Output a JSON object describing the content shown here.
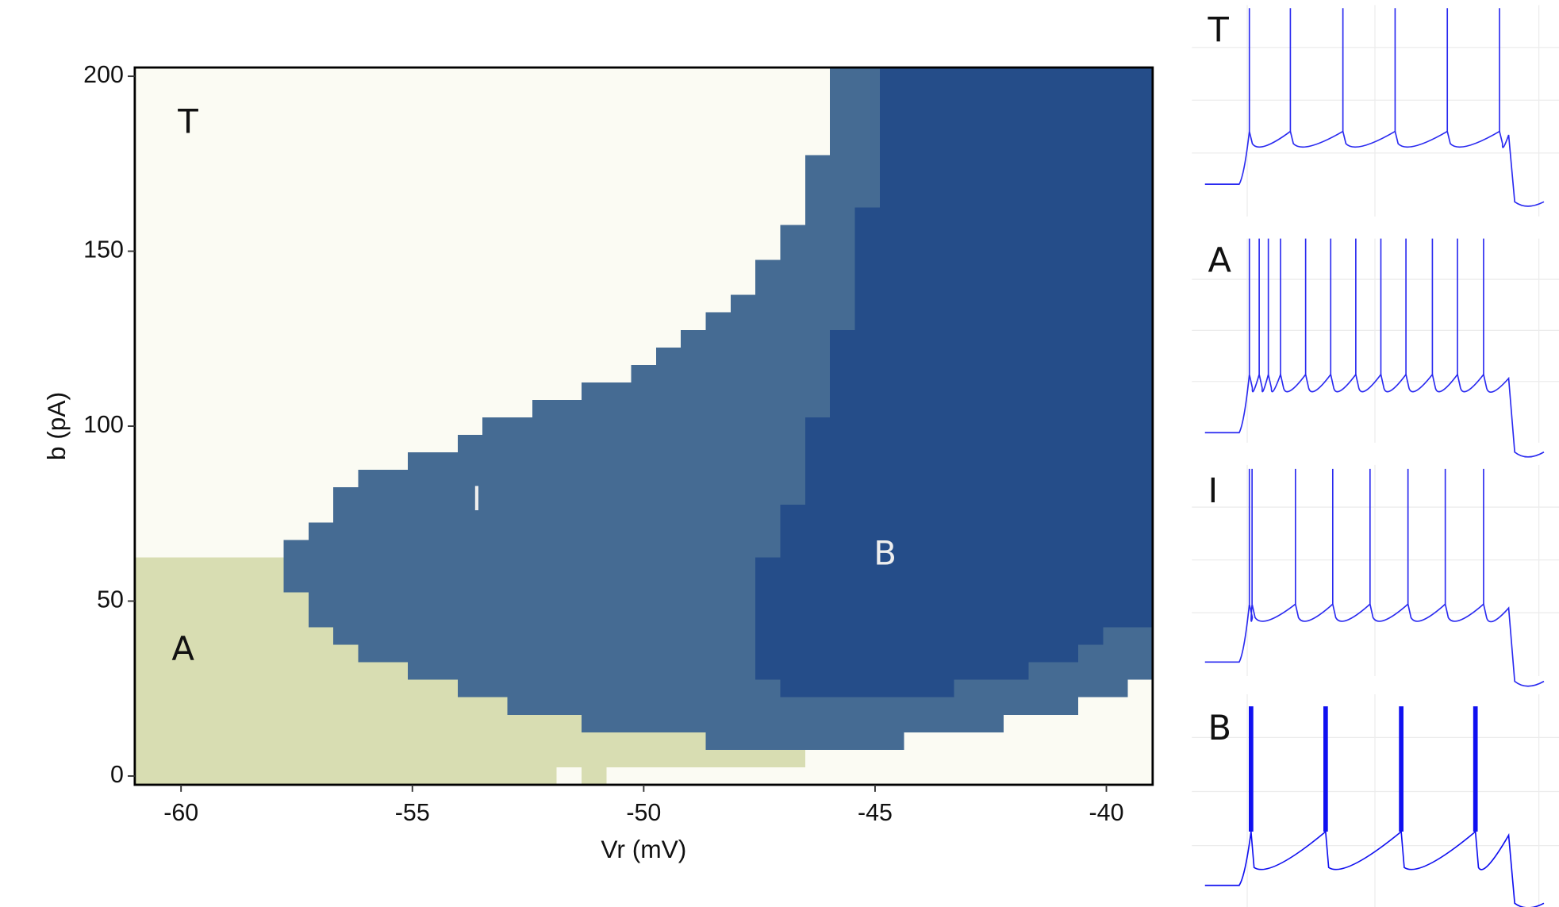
{
  "chart_data": [
    {
      "type": "region_map",
      "xlabel": "Vr (mV)",
      "ylabel": "b (pA)",
      "xlim": [
        -61,
        -39
      ],
      "ylim": [
        -2.5,
        202.5
      ],
      "xticks": [
        -60,
        -55,
        -50,
        -45,
        -40
      ],
      "yticks": [
        0,
        50,
        100,
        150,
        200
      ],
      "regions": [
        {
          "name": "T",
          "color": "#fbfbf3",
          "polygon": [
            [
              -61,
              -2.5
            ],
            [
              -61,
              202.5
            ],
            [
              -39,
              202.5
            ],
            [
              -39,
              -2.5
            ]
          ]
        },
        {
          "name": "A",
          "color": "#d8ddb2",
          "polygon": [
            [
              -61,
              -2.5
            ],
            [
              -61,
              62.5
            ],
            [
              -48.66,
              62.5
            ],
            [
              -48.66,
              7.5
            ],
            [
              -46.51,
              7.5
            ],
            [
              -46.51,
              2.5
            ],
            [
              -50.8,
              2.5
            ],
            [
              -50.8,
              -2.5
            ],
            [
              -51.34,
              -2.5
            ],
            [
              -51.34,
              2.5
            ],
            [
              -51.88,
              2.5
            ],
            [
              -51.88,
              -2.5
            ]
          ]
        },
        {
          "name": "I",
          "color": "#456b93",
          "polygon": [
            [
              -57.78,
              52.5
            ],
            [
              -57.78,
              67.5
            ],
            [
              -57.24,
              67.5
            ],
            [
              -57.24,
              72.5
            ],
            [
              -56.71,
              72.5
            ],
            [
              -56.71,
              82.5
            ],
            [
              -56.17,
              82.5
            ],
            [
              -56.17,
              87.5
            ],
            [
              -55.1,
              87.5
            ],
            [
              -55.1,
              92.5
            ],
            [
              -54.02,
              92.5
            ],
            [
              -54.02,
              97.5
            ],
            [
              -53.49,
              97.5
            ],
            [
              -53.49,
              102.5
            ],
            [
              -52.41,
              102.5
            ],
            [
              -52.41,
              107.5
            ],
            [
              -51.34,
              107.5
            ],
            [
              -51.34,
              112.5
            ],
            [
              -50.27,
              112.5
            ],
            [
              -50.27,
              117.5
            ],
            [
              -49.73,
              117.5
            ],
            [
              -49.73,
              122.5
            ],
            [
              -49.2,
              122.5
            ],
            [
              -49.2,
              127.5
            ],
            [
              -48.66,
              127.5
            ],
            [
              -48.66,
              132.5
            ],
            [
              -48.12,
              132.5
            ],
            [
              -48.12,
              137.5
            ],
            [
              -47.59,
              137.5
            ],
            [
              -47.59,
              147.5
            ],
            [
              -47.05,
              147.5
            ],
            [
              -47.05,
              157.5
            ],
            [
              -46.51,
              157.5
            ],
            [
              -46.51,
              177.5
            ],
            [
              -45.98,
              177.5
            ],
            [
              -45.98,
              202.5
            ],
            [
              -39,
              202.5
            ],
            [
              -39,
              27.5
            ],
            [
              -39.54,
              27.5
            ],
            [
              -39.54,
              22.5
            ],
            [
              -40.61,
              22.5
            ],
            [
              -40.61,
              17.5
            ],
            [
              -42.22,
              17.5
            ],
            [
              -42.22,
              12.5
            ],
            [
              -44.37,
              12.5
            ],
            [
              -44.37,
              7.5
            ],
            [
              -48.66,
              7.5
            ],
            [
              -48.66,
              12.5
            ],
            [
              -51.34,
              12.5
            ],
            [
              -51.34,
              17.5
            ],
            [
              -52.95,
              17.5
            ],
            [
              -52.95,
              22.5
            ],
            [
              -54.02,
              22.5
            ],
            [
              -54.02,
              27.5
            ],
            [
              -55.1,
              27.5
            ],
            [
              -55.1,
              32.5
            ],
            [
              -56.17,
              32.5
            ],
            [
              -56.17,
              37.5
            ],
            [
              -56.71,
              37.5
            ],
            [
              -56.71,
              42.5
            ],
            [
              -57.24,
              42.5
            ],
            [
              -57.24,
              52.5
            ]
          ]
        },
        {
          "name": "B",
          "color": "#254d89",
          "polygon": [
            [
              -44.9,
              202.5
            ],
            [
              -39,
              202.5
            ],
            [
              -39,
              42.5
            ],
            [
              -40.07,
              42.5
            ],
            [
              -40.07,
              37.5
            ],
            [
              -40.61,
              37.5
            ],
            [
              -40.61,
              32.5
            ],
            [
              -41.68,
              32.5
            ],
            [
              -41.68,
              27.5
            ],
            [
              -43.29,
              27.5
            ],
            [
              -43.29,
              22.5
            ],
            [
              -47.05,
              22.5
            ],
            [
              -47.05,
              27.5
            ],
            [
              -47.59,
              27.5
            ],
            [
              -47.59,
              62.5
            ],
            [
              -47.05,
              62.5
            ],
            [
              -47.05,
              77.5
            ],
            [
              -46.51,
              77.5
            ],
            [
              -46.51,
              102.5
            ],
            [
              -45.98,
              102.5
            ],
            [
              -45.98,
              127.5
            ],
            [
              -45.44,
              127.5
            ],
            [
              -45.44,
              162.5
            ],
            [
              -44.9,
              162.5
            ]
          ]
        }
      ]
    },
    {
      "type": "spike_trace",
      "name": "T",
      "color": "#2a2af0",
      "xlim": [
        0,
        100
      ],
      "stimulus": [
        10.1,
        89.6
      ],
      "spike_times": [
        13.1,
        25.2,
        40.7,
        56.1,
        71.5,
        86.9
      ]
    },
    {
      "type": "spike_trace",
      "name": "A",
      "color": "#2a2af0",
      "xlim": [
        0,
        100
      ],
      "stimulus": [
        10.1,
        89.6
      ],
      "spike_times": [
        13.1,
        16.0,
        18.7,
        22.3,
        29.7,
        37.1,
        44.5,
        51.9,
        59.3,
        67.1,
        74.5,
        82.2
      ]
    },
    {
      "type": "spike_trace",
      "name": "I",
      "color": "#2a2af0",
      "xlim": [
        0,
        100
      ],
      "stimulus": [
        10.1,
        89.6
      ],
      "spike_times": [
        13.1,
        13.9,
        26.7,
        37.7,
        48.7,
        59.9,
        70.9,
        82.2
      ]
    },
    {
      "type": "spike_trace",
      "name": "B",
      "color": "#1010f0",
      "xlim": [
        0,
        100
      ],
      "stimulus": [
        10.1,
        89.6
      ],
      "burst": true,
      "spike_times": [
        13.6,
        35.6,
        57.9,
        79.8
      ]
    }
  ]
}
